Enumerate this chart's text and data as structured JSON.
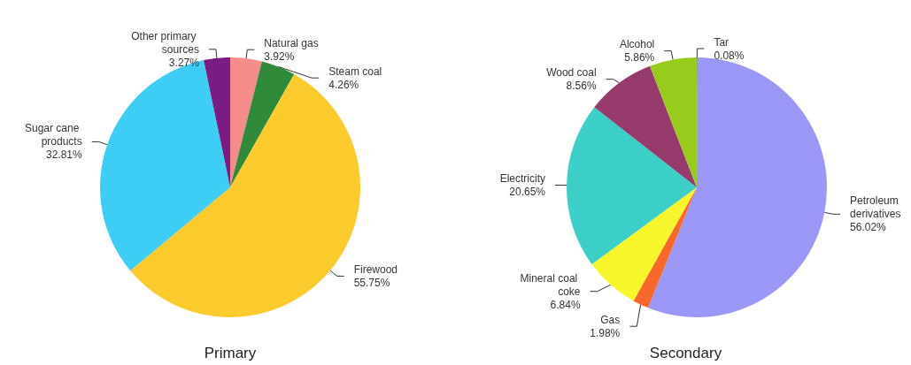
{
  "chart_data": [
    {
      "type": "pie",
      "title": "Primary",
      "categories": [
        "Natural gas",
        "Steam coal",
        "Firewood",
        "Sugar cane products",
        "Other primary sources"
      ],
      "values": [
        3.92,
        4.26,
        55.75,
        32.81,
        3.27
      ],
      "value_labels": [
        "3.92%",
        "4.26%",
        "55.75%",
        "32.81%",
        "3.27%"
      ],
      "colors": [
        "#f58c8c",
        "#2f8a3a",
        "#fbcb2e",
        "#3dcdf5",
        "#7a1c82"
      ]
    },
    {
      "type": "pie",
      "title": "Secondary",
      "categories": [
        "Tar",
        "Petroleum derivatives",
        "Gas",
        "Mineral coal coke",
        "Electricity",
        "Wood coal",
        "Alcohol"
      ],
      "values": [
        0.08,
        56.02,
        1.98,
        6.84,
        20.65,
        8.56,
        5.86
      ],
      "value_labels": [
        "0.08%",
        "56.02%",
        "1.98%",
        "6.84%",
        "20.65%",
        "8.56%",
        "5.86%"
      ],
      "colors": [
        "#8a6a3a",
        "#9b97f6",
        "#f7682a",
        "#f7f52c",
        "#3ccfc8",
        "#963a6c",
        "#98cc1c"
      ]
    }
  ]
}
